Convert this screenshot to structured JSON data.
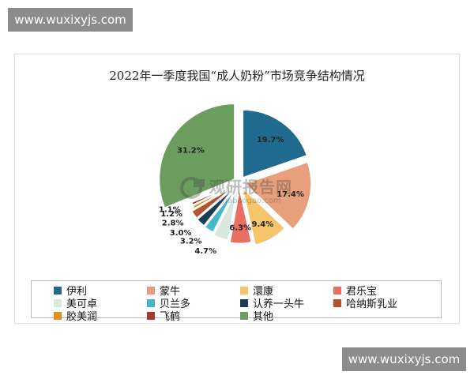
{
  "watermark_top": "www.wuxixyjs.com",
  "watermark_bottom": "www.wuxixyjs.com",
  "logo": {
    "main": "观研报告网",
    "sub": "chinabaogao.com"
  },
  "chart_data": {
    "type": "pie",
    "title": "2022年一季度我国“成人奶粉”市场竞争结构情况",
    "slices": [
      {
        "name": "伊利",
        "value": 19.7,
        "label": "19.7%",
        "color": "#1f6b8f"
      },
      {
        "name": "蒙牛",
        "value": 17.4,
        "label": "17.4%",
        "color": "#e8a07c"
      },
      {
        "name": "澴康",
        "value": 9.4,
        "label": "9.4%",
        "color": "#f6c56b"
      },
      {
        "name": "君乐宝",
        "value": 6.3,
        "label": "6.3%",
        "color": "#e86f62"
      },
      {
        "name": "美可卓",
        "value": 4.7,
        "label": "4.7%",
        "color": "#d9e8de"
      },
      {
        "name": "贝兰多",
        "value": 3.2,
        "label": "3.2%",
        "color": "#45b8c9"
      },
      {
        "name": "认养一头牛",
        "value": 3.0,
        "label": "3.0%",
        "color": "#1a3d52"
      },
      {
        "name": "哈纳斯乳业",
        "value": 2.8,
        "label": "2.8%",
        "color": "#b5532c"
      },
      {
        "name": "胶美润",
        "value": 1.2,
        "label": "1.2%",
        "color": "#e3901e"
      },
      {
        "name": "飞鹤",
        "value": 1.1,
        "label": "1.1%",
        "color": "#a33a34"
      },
      {
        "name": "其他",
        "value": 31.2,
        "label": "31.2%",
        "color": "#6b9e5e"
      }
    ],
    "legend_position": "bottom"
  }
}
